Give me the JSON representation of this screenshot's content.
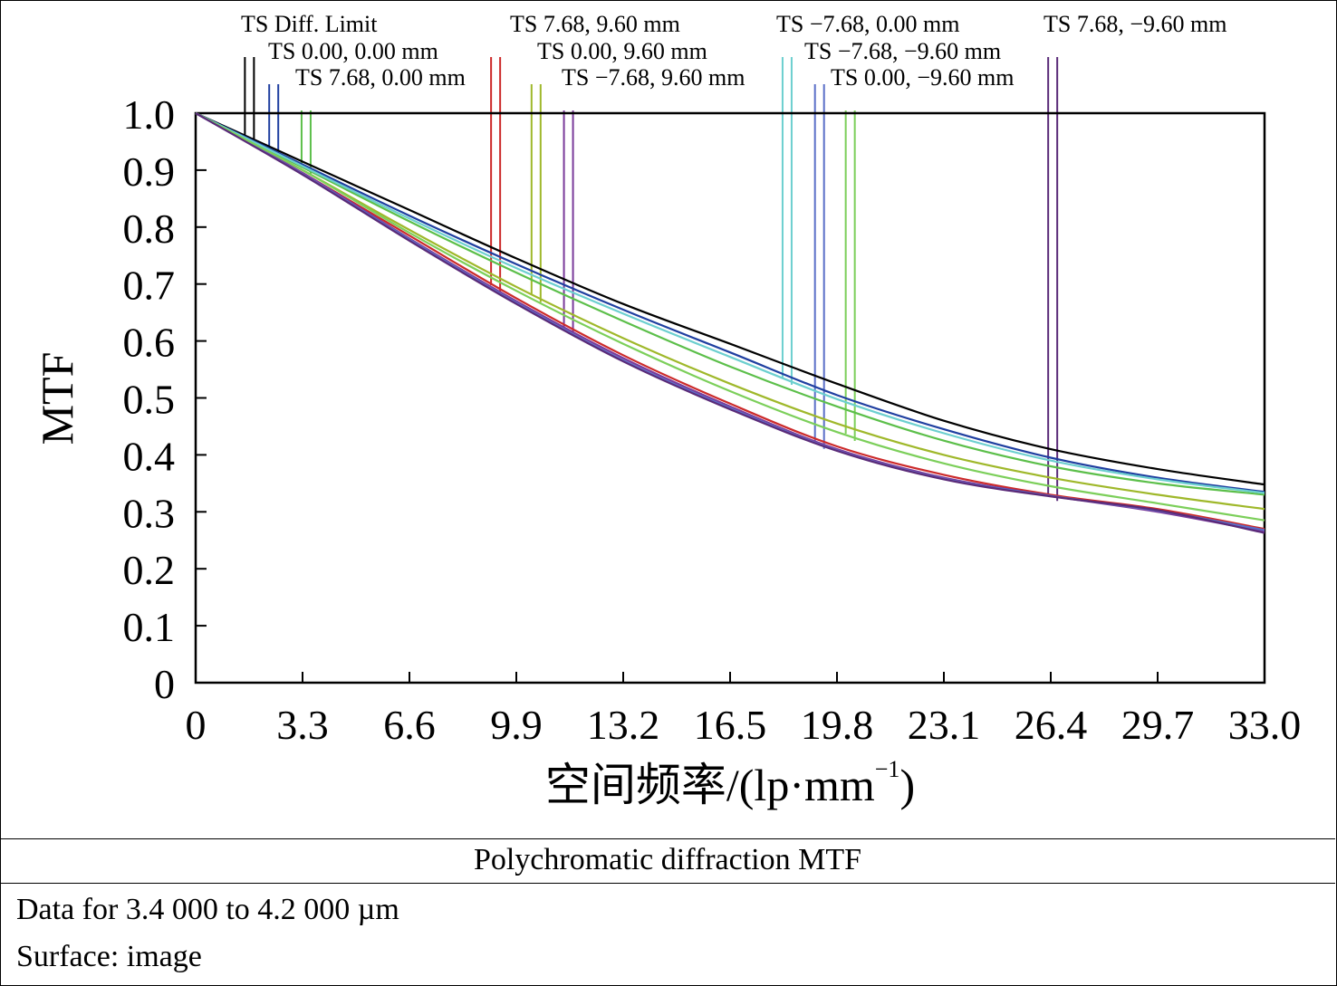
{
  "chart_data": {
    "type": "line",
    "ylabel": "MTF",
    "xlabel_main": "空间频率/(lp·mm",
    "xlabel_sup": "−1",
    "xlabel_end": ")",
    "xlim": [
      0,
      33.0
    ],
    "ylim": [
      0,
      1.0
    ],
    "x_ticks": [
      "0",
      "3.3",
      "6.6",
      "9.9",
      "13.2",
      "16.5",
      "19.8",
      "23.1",
      "26.4",
      "29.7",
      "33.0"
    ],
    "y_ticks": [
      "0",
      "0.1",
      "0.2",
      "0.3",
      "0.4",
      "0.5",
      "0.6",
      "0.7",
      "0.8",
      "0.9",
      "1.0"
    ],
    "series": [
      {
        "name": "TS Diff. Limit",
        "color": "#000000",
        "x": [
          0,
          3.3,
          6.6,
          9.9,
          13.2,
          16.5,
          19.8,
          23.1,
          26.4,
          29.7,
          33.0
        ],
        "y": [
          1.0,
          0.915,
          0.83,
          0.745,
          0.665,
          0.595,
          0.525,
          0.46,
          0.41,
          0.375,
          0.348
        ]
      },
      {
        "name": "TS 0.00, 0.00 mm",
        "color": "#1f3fa0",
        "x": [
          0,
          3.3,
          6.6,
          9.9,
          13.2,
          16.5,
          19.8,
          23.1,
          26.4,
          29.7,
          33.0
        ],
        "y": [
          1.0,
          0.91,
          0.82,
          0.735,
          0.655,
          0.58,
          0.505,
          0.445,
          0.395,
          0.36,
          0.335
        ]
      },
      {
        "name": "TS 7.68, 0.00 mm",
        "color": "#5cbf4a",
        "x": [
          0,
          3.3,
          6.6,
          9.9,
          13.2,
          16.5,
          19.8,
          23.1,
          26.4,
          29.7,
          33.0
        ],
        "y": [
          1.0,
          0.905,
          0.81,
          0.72,
          0.635,
          0.555,
          0.485,
          0.425,
          0.38,
          0.35,
          0.33
        ]
      },
      {
        "name": "TS 7.68, 9.60 mm",
        "color": "#cc2a2a",
        "x": [
          0,
          3.3,
          6.6,
          9.9,
          13.2,
          16.5,
          19.8,
          23.1,
          26.4,
          29.7,
          33.0
        ],
        "y": [
          1.0,
          0.895,
          0.785,
          0.675,
          0.575,
          0.49,
          0.415,
          0.365,
          0.33,
          0.305,
          0.27
        ]
      },
      {
        "name": "TS 0.00, 9.60 mm",
        "color": "#9fb82a",
        "x": [
          0,
          3.3,
          6.6,
          9.9,
          13.2,
          16.5,
          19.8,
          23.1,
          26.4,
          29.7,
          33.0
        ],
        "y": [
          1.0,
          0.9,
          0.795,
          0.695,
          0.605,
          0.525,
          0.455,
          0.4,
          0.36,
          0.33,
          0.305
        ]
      },
      {
        "name": "TS −7.68, 9.60 mm",
        "color": "#7a3a9a",
        "x": [
          0,
          3.3,
          6.6,
          9.9,
          13.2,
          16.5,
          19.8,
          23.1,
          26.4,
          29.7,
          33.0
        ],
        "y": [
          1.0,
          0.895,
          0.78,
          0.67,
          0.57,
          0.485,
          0.41,
          0.36,
          0.328,
          0.3,
          0.265
        ]
      },
      {
        "name": "TS −7.68, 0.00 mm",
        "color": "#6ccfcf",
        "x": [
          0,
          3.3,
          6.6,
          9.9,
          13.2,
          16.5,
          19.8,
          23.1,
          26.4,
          29.7,
          33.0
        ],
        "y": [
          1.0,
          0.907,
          0.815,
          0.728,
          0.648,
          0.572,
          0.498,
          0.438,
          0.39,
          0.357,
          0.333
        ]
      },
      {
        "name": "TS −7.68, −9.60 mm",
        "color": "#5a6ec8",
        "x": [
          0,
          3.3,
          6.6,
          9.9,
          13.2,
          16.5,
          19.8,
          23.1,
          26.4,
          29.7,
          33.0
        ],
        "y": [
          1.0,
          0.893,
          0.778,
          0.667,
          0.566,
          0.482,
          0.408,
          0.358,
          0.328,
          0.302,
          0.268
        ]
      },
      {
        "name": "TS 0.00, −9.60 mm",
        "color": "#7ccf5a",
        "x": [
          0,
          3.3,
          6.6,
          9.9,
          13.2,
          16.5,
          19.8,
          23.1,
          26.4,
          29.7,
          33.0
        ],
        "y": [
          1.0,
          0.9,
          0.79,
          0.688,
          0.595,
          0.512,
          0.44,
          0.385,
          0.345,
          0.315,
          0.285
        ]
      },
      {
        "name": "TS 7.68, −9.60 mm",
        "color": "#5a2a78",
        "x": [
          0,
          3.3,
          6.6,
          9.9,
          13.2,
          16.5,
          19.8,
          23.1,
          26.4,
          29.7,
          33.0
        ],
        "y": [
          1.0,
          0.892,
          0.776,
          0.665,
          0.564,
          0.48,
          0.407,
          0.357,
          0.327,
          0.303,
          0.263
        ]
      }
    ]
  },
  "footer": {
    "title": "Polychromatic diffraction MTF",
    "data_range": "Data for 3.4 000 to 4.2 000 µm",
    "surface": "Surface: image"
  }
}
